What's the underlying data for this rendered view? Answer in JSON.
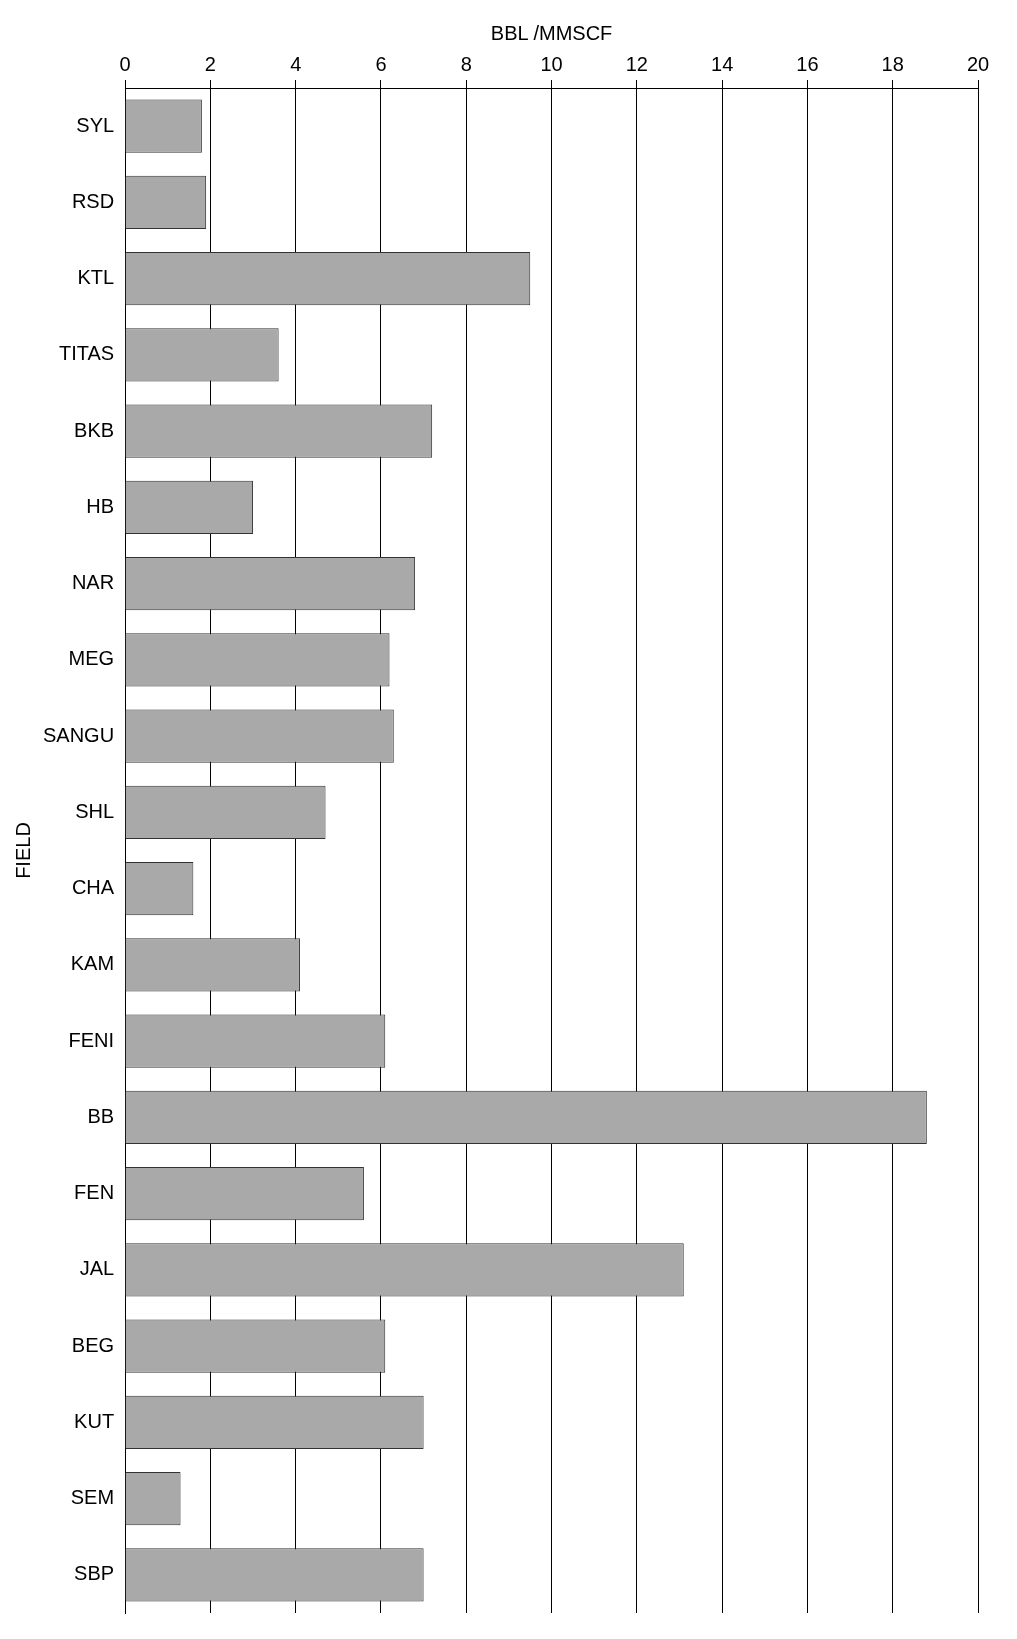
{
  "chart_data": {
    "type": "bar",
    "orientation": "horizontal",
    "xlabel": "BBL /MMSCF",
    "ylabel": "FIELD",
    "categories": [
      "SYL",
      "RSD",
      "KTL",
      "TITAS",
      "BKB",
      "HB",
      "NAR",
      "MEG",
      "SANGU",
      "SHL",
      "CHA",
      "KAM",
      "FENI",
      "BB",
      "FEN",
      "JAL",
      "BEG",
      "KUT",
      "SEM",
      "SBP"
    ],
    "values": [
      1.8,
      1.9,
      9.5,
      3.6,
      7.2,
      3.0,
      6.8,
      6.2,
      6.3,
      4.7,
      1.6,
      4.1,
      6.1,
      18.8,
      5.6,
      13.1,
      6.1,
      7.0,
      1.3,
      7.0
    ],
    "color": "#a9a9a9",
    "xlim": [
      0,
      20
    ],
    "xticks": [
      0,
      2,
      4,
      6,
      8,
      10,
      12,
      14,
      16,
      18,
      20
    ],
    "grid": "x",
    "legend": false
  }
}
